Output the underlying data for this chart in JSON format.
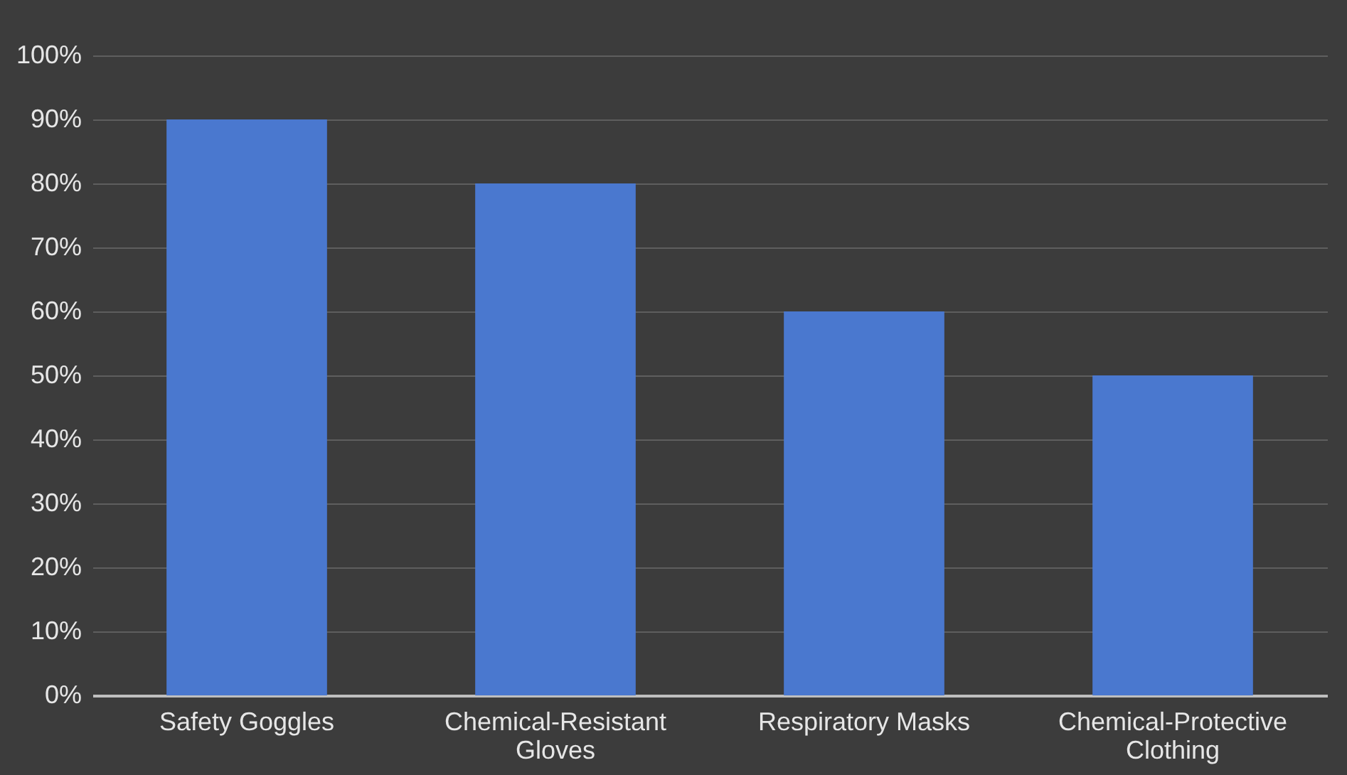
{
  "chart_data": {
    "type": "bar",
    "categories": [
      "Safety Goggles",
      "Chemical-Resistant Gloves",
      "Respiratory Masks",
      "Chemical-Protective Clothing"
    ],
    "values": [
      90,
      80,
      60,
      50
    ],
    "color": "#4a78cf",
    "ylim": [
      0,
      100
    ],
    "yticks": [
      {
        "value": 0,
        "label": "0%"
      },
      {
        "value": 10,
        "label": "10%"
      },
      {
        "value": 20,
        "label": "20%"
      },
      {
        "value": 30,
        "label": "30%"
      },
      {
        "value": 40,
        "label": "40%"
      },
      {
        "value": 50,
        "label": "50%"
      },
      {
        "value": 60,
        "label": "60%"
      },
      {
        "value": 70,
        "label": "70%"
      },
      {
        "value": 80,
        "label": "80%"
      },
      {
        "value": 90,
        "label": "90%"
      },
      {
        "value": 100,
        "label": "100%"
      }
    ],
    "grid": "y"
  }
}
